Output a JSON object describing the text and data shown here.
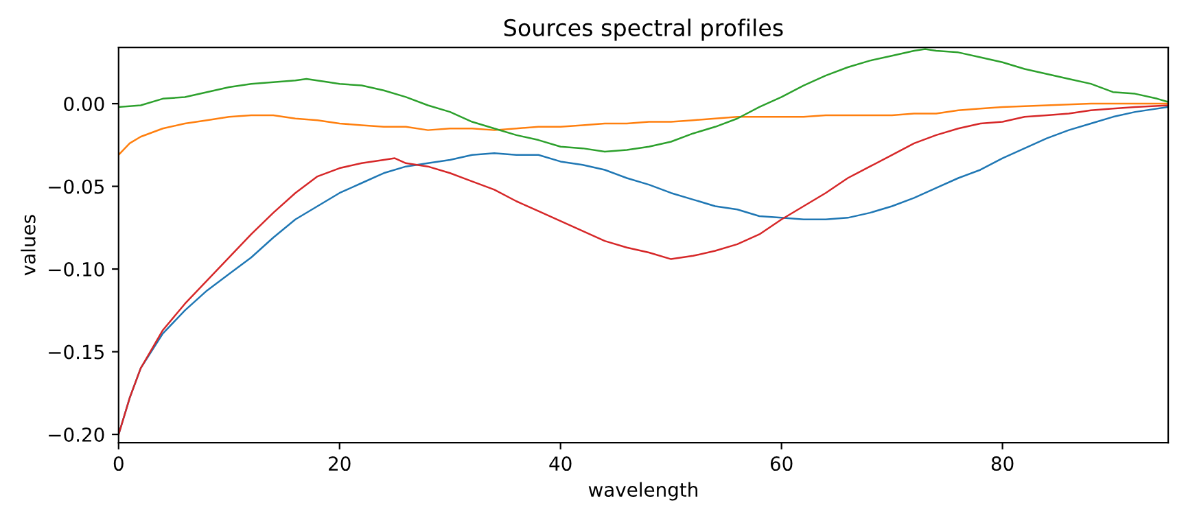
{
  "chart_data": {
    "type": "line",
    "title": "Sources spectral profiles",
    "xlabel": "wavelength",
    "ylabel": "values",
    "xlim": [
      0,
      95
    ],
    "xticks": [
      0,
      20,
      40,
      60,
      80
    ],
    "ylim": [
      -0.205,
      0.034
    ],
    "yticks": [
      {
        "value": -0.2,
        "label": "−0.20"
      },
      {
        "value": -0.15,
        "label": "−0.15"
      },
      {
        "value": -0.1,
        "label": "−0.10"
      },
      {
        "value": -0.05,
        "label": "−0.05"
      },
      {
        "value": 0.0,
        "label": "0.00"
      }
    ],
    "grid": false,
    "legend": false,
    "marker": "none",
    "line_style": "solid",
    "series": [
      {
        "color": "#1f77b4",
        "x": [
          0,
          1,
          2,
          4,
          6,
          8,
          10,
          12,
          14,
          16,
          18,
          20,
          22,
          24,
          26,
          28,
          30,
          32,
          34,
          36,
          38,
          40,
          42,
          44,
          46,
          48,
          50,
          52,
          54,
          56,
          58,
          60,
          62,
          64,
          66,
          68,
          70,
          72,
          74,
          76,
          78,
          80,
          82,
          84,
          86,
          88,
          90,
          92,
          95
        ],
        "values": [
          -0.2,
          -0.178,
          -0.16,
          -0.139,
          -0.125,
          -0.113,
          -0.103,
          -0.093,
          -0.081,
          -0.07,
          -0.062,
          -0.054,
          -0.048,
          -0.042,
          -0.038,
          -0.036,
          -0.034,
          -0.031,
          -0.03,
          -0.031,
          -0.031,
          -0.035,
          -0.037,
          -0.04,
          -0.045,
          -0.049,
          -0.054,
          -0.058,
          -0.062,
          -0.064,
          -0.068,
          -0.069,
          -0.07,
          -0.07,
          -0.069,
          -0.066,
          -0.062,
          -0.057,
          -0.051,
          -0.045,
          -0.04,
          -0.033,
          -0.027,
          -0.021,
          -0.016,
          -0.012,
          -0.008,
          -0.005,
          -0.002
        ]
      },
      {
        "color": "#ff7f0e",
        "x": [
          0,
          1,
          2,
          4,
          6,
          8,
          10,
          12,
          14,
          16,
          18,
          20,
          22,
          24,
          26,
          28,
          30,
          32,
          34,
          36,
          38,
          40,
          42,
          44,
          46,
          48,
          50,
          52,
          54,
          56,
          58,
          60,
          62,
          64,
          66,
          68,
          70,
          72,
          74,
          76,
          78,
          80,
          84,
          88,
          92,
          95
        ],
        "values": [
          -0.031,
          -0.024,
          -0.02,
          -0.015,
          -0.012,
          -0.01,
          -0.008,
          -0.007,
          -0.007,
          -0.009,
          -0.01,
          -0.012,
          -0.013,
          -0.014,
          -0.014,
          -0.016,
          -0.015,
          -0.015,
          -0.016,
          -0.015,
          -0.014,
          -0.014,
          -0.013,
          -0.012,
          -0.012,
          -0.011,
          -0.011,
          -0.01,
          -0.009,
          -0.008,
          -0.008,
          -0.008,
          -0.008,
          -0.007,
          -0.007,
          -0.007,
          -0.007,
          -0.006,
          -0.006,
          -0.004,
          -0.003,
          -0.002,
          -0.001,
          0.0,
          0.0,
          0.0
        ]
      },
      {
        "color": "#2ca02c",
        "x": [
          0,
          2,
          4,
          6,
          8,
          10,
          12,
          14,
          16,
          17,
          19,
          20,
          22,
          24,
          26,
          28,
          30,
          32,
          34,
          36,
          38,
          40,
          42,
          44,
          46,
          48,
          50,
          52,
          54,
          56,
          58,
          60,
          62,
          64,
          66,
          68,
          70,
          72,
          73,
          74,
          76,
          78,
          80,
          82,
          84,
          86,
          88,
          90,
          92,
          94,
          95
        ],
        "values": [
          -0.002,
          -0.001,
          0.003,
          0.004,
          0.007,
          0.01,
          0.012,
          0.013,
          0.014,
          0.015,
          0.013,
          0.012,
          0.011,
          0.008,
          0.004,
          -0.001,
          -0.005,
          -0.011,
          -0.015,
          -0.019,
          -0.022,
          -0.026,
          -0.027,
          -0.029,
          -0.028,
          -0.026,
          -0.023,
          -0.018,
          -0.014,
          -0.009,
          -0.002,
          0.004,
          0.011,
          0.017,
          0.022,
          0.026,
          0.029,
          0.032,
          0.033,
          0.032,
          0.031,
          0.028,
          0.025,
          0.021,
          0.018,
          0.015,
          0.012,
          0.007,
          0.006,
          0.003,
          0.001
        ]
      },
      {
        "color": "#d62728",
        "x": [
          0,
          1,
          2,
          4,
          6,
          8,
          10,
          12,
          14,
          16,
          18,
          20,
          22,
          24,
          25,
          26,
          28,
          30,
          32,
          34,
          36,
          38,
          40,
          42,
          44,
          46,
          48,
          50,
          52,
          54,
          56,
          58,
          60,
          62,
          64,
          66,
          68,
          70,
          72,
          74,
          76,
          78,
          80,
          82,
          84,
          86,
          88,
          90,
          92,
          95
        ],
        "values": [
          -0.2,
          -0.178,
          -0.16,
          -0.137,
          -0.121,
          -0.107,
          -0.093,
          -0.079,
          -0.066,
          -0.054,
          -0.044,
          -0.039,
          -0.036,
          -0.034,
          -0.033,
          -0.036,
          -0.038,
          -0.042,
          -0.047,
          -0.052,
          -0.059,
          -0.065,
          -0.071,
          -0.077,
          -0.083,
          -0.087,
          -0.09,
          -0.094,
          -0.092,
          -0.089,
          -0.085,
          -0.079,
          -0.07,
          -0.062,
          -0.054,
          -0.045,
          -0.038,
          -0.031,
          -0.024,
          -0.019,
          -0.015,
          -0.012,
          -0.011,
          -0.008,
          -0.007,
          -0.006,
          -0.004,
          -0.003,
          -0.002,
          -0.001
        ]
      }
    ]
  }
}
